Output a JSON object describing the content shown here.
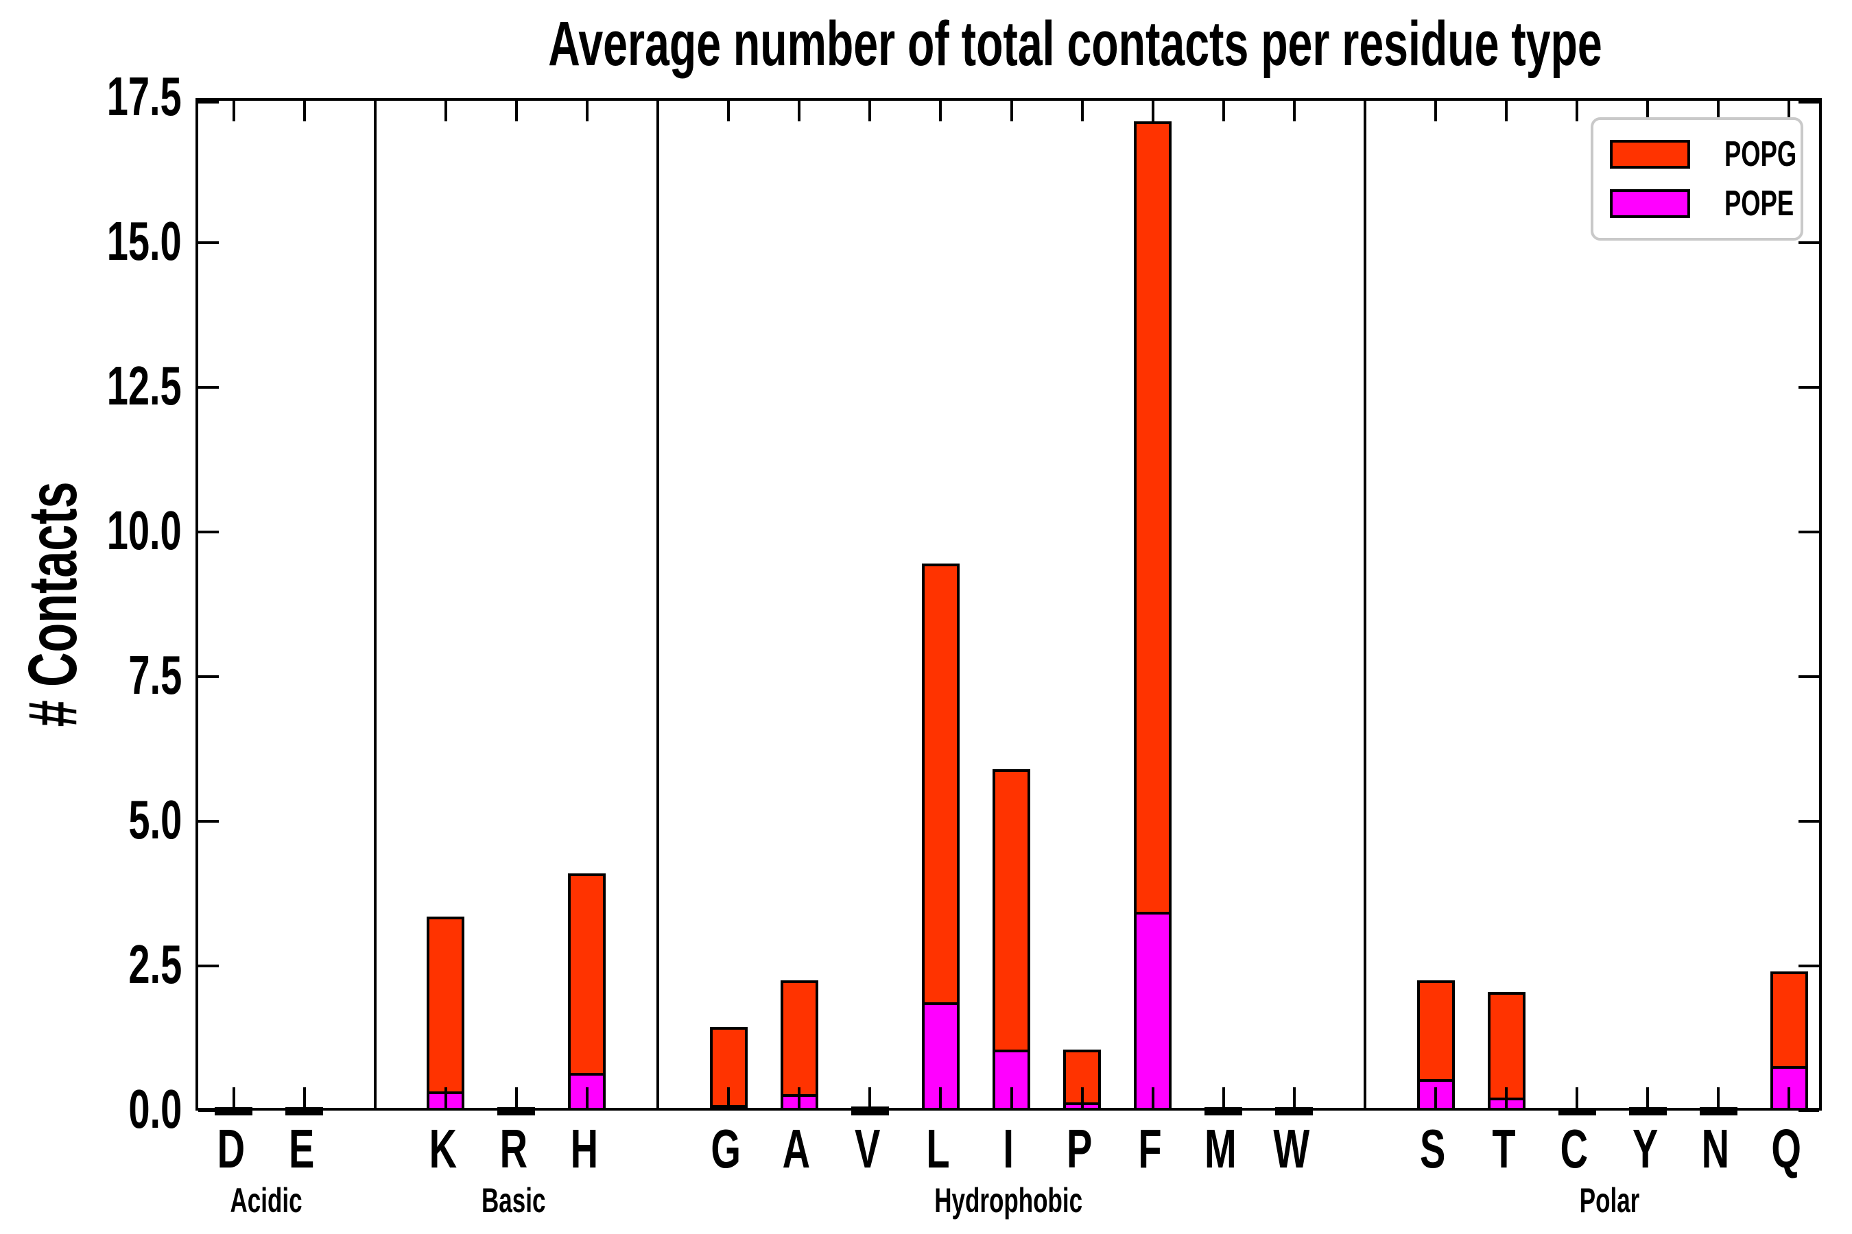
{
  "chart_data": {
    "type": "bar",
    "stacked": true,
    "title": "Average number of total contacts per residue type",
    "ylabel": "# Contacts",
    "xlabel": "",
    "ylim": [
      0,
      17.5
    ],
    "grid": false,
    "ytick_labels": [
      "0.0",
      "2.5",
      "5.0",
      "7.5",
      "10.0",
      "12.5",
      "15.0",
      "17.5"
    ],
    "ytick_values": [
      0,
      2.5,
      5,
      7.5,
      10,
      12.5,
      15,
      17.5
    ],
    "categories": [
      "D",
      "E",
      "K",
      "R",
      "H",
      "G",
      "A",
      "V",
      "L",
      "I",
      "P",
      "F",
      "M",
      "W",
      "S",
      "T",
      "C",
      "Y",
      "N",
      "Q"
    ],
    "groups": [
      {
        "label": "Acidic",
        "residues": [
          "D",
          "E"
        ]
      },
      {
        "label": "Basic",
        "residues": [
          "K",
          "R",
          "H"
        ]
      },
      {
        "label": "Hydrophobic",
        "residues": [
          "G",
          "A",
          "V",
          "L",
          "I",
          "P",
          "F",
          "M",
          "W"
        ]
      },
      {
        "label": "Polar",
        "residues": [
          "S",
          "T",
          "C",
          "Y",
          "N",
          "Q"
        ]
      }
    ],
    "series": [
      {
        "name": "POPE",
        "color": "#ff00ff",
        "values": [
          0.01,
          0.01,
          0.33,
          0.01,
          0.65,
          0.1,
          0.28,
          0.01,
          1.87,
          1.05,
          0.14,
          3.44,
          0.01,
          0.01,
          0.55,
          0.22,
          0.005,
          0.01,
          0.01,
          0.77
        ]
      },
      {
        "name": "POPG",
        "color": "#ff3300",
        "values": [
          0.01,
          0.01,
          3.02,
          0.01,
          3.45,
          1.35,
          1.97,
          0.02,
          7.58,
          4.85,
          0.91,
          13.66,
          0.01,
          0.01,
          1.7,
          1.83,
          0.005,
          0.01,
          0.01,
          1.64
        ]
      }
    ],
    "legend": {
      "position": "upper right",
      "entries": [
        {
          "label": "POPG",
          "color": "#ff3300"
        },
        {
          "label": "POPE",
          "color": "#ff00ff"
        }
      ]
    }
  }
}
